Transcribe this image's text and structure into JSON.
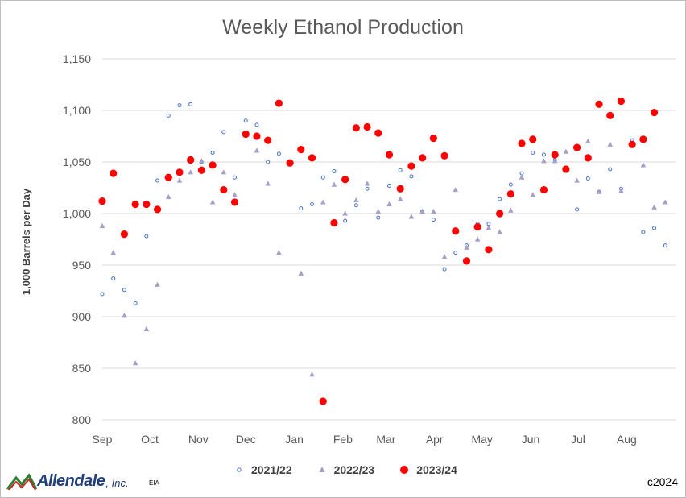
{
  "chart_data": {
    "type": "scatter",
    "title": "Weekly Ethanol Production",
    "ylabel": "1,000 Barrels per Day",
    "xlabel": "",
    "ylim": [
      800,
      1150
    ],
    "yticks": [
      "800",
      "850",
      "900",
      "950",
      "1,000",
      "1,050",
      "1,100",
      "1,150"
    ],
    "ytick_values": [
      800,
      850,
      900,
      950,
      1000,
      1050,
      1100,
      1150
    ],
    "xlim": [
      0,
      52
    ],
    "x_unit": "week of marketing year (Sep start)",
    "xticks": [
      "Sep",
      "Oct",
      "Nov",
      "Dec",
      "Jan",
      "Feb",
      "Mar",
      "Apr",
      "May",
      "Jun",
      "Jul",
      "Aug"
    ],
    "xtick_values": [
      0,
      4.3,
      8.7,
      13,
      17.4,
      21.8,
      25.7,
      30.1,
      34.4,
      38.8,
      43.1,
      47.5
    ],
    "grid": "horizontal",
    "legend_position": "bottom",
    "series": [
      {
        "name": "2021/22",
        "marker": "hollow-circle",
        "color": "#4472c4",
        "points": [
          [
            0,
            922
          ],
          [
            1,
            937
          ],
          [
            2,
            926
          ],
          [
            3,
            913
          ],
          [
            4,
            978
          ],
          [
            5,
            1032
          ],
          [
            6,
            1095
          ],
          [
            7,
            1105
          ],
          [
            8,
            1106
          ],
          [
            9,
            1050
          ],
          [
            10,
            1059
          ],
          [
            11,
            1079
          ],
          [
            12,
            1035
          ],
          [
            13,
            1090
          ],
          [
            14,
            1086
          ],
          [
            15,
            1050
          ],
          [
            16,
            1058
          ],
          [
            17,
            1049
          ],
          [
            18,
            1005
          ],
          [
            19,
            1009
          ],
          [
            20,
            1035
          ],
          [
            21,
            1041
          ],
          [
            22,
            993
          ],
          [
            23,
            1008
          ],
          [
            24,
            1024
          ],
          [
            25,
            996
          ],
          [
            26,
            1027
          ],
          [
            27,
            1042
          ],
          [
            28,
            1036
          ],
          [
            29,
            1002
          ],
          [
            30,
            994
          ],
          [
            31,
            946
          ],
          [
            32,
            962
          ],
          [
            33,
            969
          ],
          [
            34,
            990
          ],
          [
            35,
            990
          ],
          [
            36,
            1014
          ],
          [
            37,
            1028
          ],
          [
            38,
            1039
          ],
          [
            39,
            1059
          ],
          [
            40,
            1057
          ],
          [
            41,
            1052
          ],
          [
            42,
            1043
          ],
          [
            43,
            1004
          ],
          [
            44,
            1034
          ],
          [
            45,
            1021
          ],
          [
            46,
            1043
          ],
          [
            47,
            1024
          ],
          [
            48,
            1071
          ],
          [
            49,
            982
          ],
          [
            50,
            986
          ],
          [
            51,
            969
          ]
        ]
      },
      {
        "name": "2022/23",
        "marker": "triangle",
        "color": "#a5a0c8",
        "points": [
          [
            0,
            988
          ],
          [
            1,
            962
          ],
          [
            2,
            901
          ],
          [
            3,
            855
          ],
          [
            4,
            888
          ],
          [
            5,
            931
          ],
          [
            6,
            1016
          ],
          [
            7,
            1032
          ],
          [
            8,
            1040
          ],
          [
            9,
            1051
          ],
          [
            10,
            1011
          ],
          [
            11,
            1040
          ],
          [
            12,
            1018
          ],
          [
            13,
            1076
          ],
          [
            14,
            1061
          ],
          [
            15,
            1029
          ],
          [
            16,
            962
          ],
          [
            17,
            1049
          ],
          [
            18,
            942
          ],
          [
            19,
            844
          ],
          [
            20,
            1011
          ],
          [
            21,
            1028
          ],
          [
            22,
            1000
          ],
          [
            23,
            1013
          ],
          [
            24,
            1029
          ],
          [
            25,
            1002
          ],
          [
            26,
            1009
          ],
          [
            27,
            1014
          ],
          [
            28,
            997
          ],
          [
            29,
            1002
          ],
          [
            30,
            1002
          ],
          [
            31,
            958
          ],
          [
            32,
            1023
          ],
          [
            33,
            967
          ],
          [
            34,
            975
          ],
          [
            35,
            986
          ],
          [
            36,
            982
          ],
          [
            37,
            1003
          ],
          [
            38,
            1035
          ],
          [
            39,
            1018
          ],
          [
            40,
            1051
          ],
          [
            41,
            1051
          ],
          [
            42,
            1060
          ],
          [
            43,
            1032
          ],
          [
            44,
            1070
          ],
          [
            45,
            1021
          ],
          [
            46,
            1067
          ],
          [
            47,
            1022
          ],
          [
            48,
            1068
          ],
          [
            49,
            1047
          ],
          [
            50,
            1006
          ],
          [
            51,
            1011
          ]
        ]
      },
      {
        "name": "2023/24",
        "marker": "filled-circle",
        "color": "#ff0000",
        "points": [
          [
            0,
            1012
          ],
          [
            1,
            1039
          ],
          [
            2,
            980
          ],
          [
            3,
            1009
          ],
          [
            4,
            1009
          ],
          [
            5,
            1004
          ],
          [
            6,
            1035
          ],
          [
            7,
            1040
          ],
          [
            8,
            1052
          ],
          [
            9,
            1042
          ],
          [
            10,
            1047
          ],
          [
            11,
            1023
          ],
          [
            12,
            1011
          ],
          [
            13,
            1077
          ],
          [
            14,
            1075
          ],
          [
            15,
            1071
          ],
          [
            16,
            1107
          ],
          [
            17,
            1049
          ],
          [
            18,
            1062
          ],
          [
            19,
            1054
          ],
          [
            20,
            818
          ],
          [
            21,
            991
          ],
          [
            22,
            1033
          ],
          [
            23,
            1083
          ],
          [
            24,
            1084
          ],
          [
            25,
            1078
          ],
          [
            26,
            1057
          ],
          [
            27,
            1024
          ],
          [
            28,
            1046
          ],
          [
            29,
            1054
          ],
          [
            30,
            1073
          ],
          [
            31,
            1056
          ],
          [
            32,
            983
          ],
          [
            33,
            954
          ],
          [
            34,
            987
          ],
          [
            35,
            965
          ],
          [
            36,
            1000
          ],
          [
            37,
            1019
          ],
          [
            38,
            1068
          ],
          [
            39,
            1072
          ],
          [
            40,
            1023
          ],
          [
            41,
            1057
          ],
          [
            42,
            1043
          ],
          [
            43,
            1064
          ],
          [
            44,
            1054
          ],
          [
            45,
            1106
          ],
          [
            46,
            1095
          ],
          [
            47,
            1109
          ],
          [
            48,
            1067
          ],
          [
            49,
            1072
          ],
          [
            50,
            1098
          ]
        ]
      }
    ]
  },
  "legend": {
    "items": [
      "2021/22",
      "2022/23",
      "2023/24"
    ]
  },
  "footer": {
    "logo_text": "Allendale",
    "logo_suffix": ", Inc.",
    "source": "EIA",
    "copyright": "c2024"
  }
}
